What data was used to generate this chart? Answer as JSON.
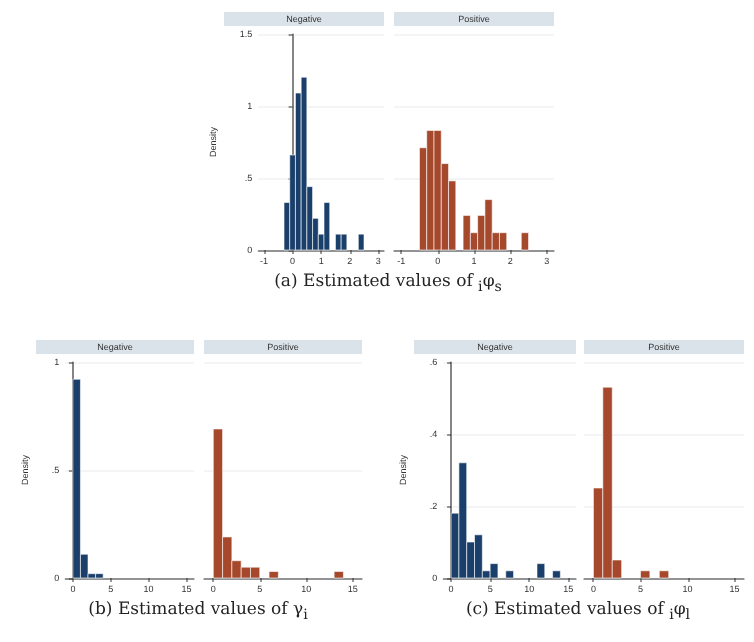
{
  "chart_data": [
    {
      "type": "histogram",
      "title": "Negative",
      "ylabel": "Density",
      "bins": [
        -0.3,
        -0.1,
        0.1,
        0.3,
        0.5,
        0.7,
        0.9,
        1.1,
        1.3,
        1.5,
        1.7,
        1.9,
        2.1,
        2.3,
        2.5
      ],
      "values": [
        0.33,
        0.66,
        1.09,
        1.2,
        0.44,
        0.22,
        0.11,
        0.33,
        0,
        0.11,
        0.11,
        0,
        0,
        0.11
      ],
      "color": "#1b3f6b",
      "xlim": [
        -1.2,
        3.2
      ],
      "xticks": [
        -1,
        0,
        1,
        2,
        3
      ],
      "ylim": [
        0,
        1.5
      ],
      "yticks": [
        0,
        {
          "value": 0.5,
          "label": ".5"
        },
        1,
        1.5
      ],
      "grid": "y",
      "annotations": [
        "(a) Estimated values of $_{i}$φ$_{s}$"
      ]
    },
    {
      "type": "histogram",
      "title": "Positive",
      "bins": [
        -0.5,
        -0.3,
        -0.1,
        0.1,
        0.3,
        0.5,
        0.7,
        0.9,
        1.1,
        1.3,
        1.5,
        1.7,
        1.9,
        2.1,
        2.3,
        2.5
      ],
      "values": [
        0.71,
        0.83,
        0.83,
        0.6,
        0.48,
        0,
        0.24,
        0.12,
        0.24,
        0.35,
        0.12,
        0.12,
        0,
        0,
        0.12
      ],
      "color": "#a5482b",
      "xlim": [
        -1.2,
        3.2
      ],
      "xticks": [
        -1,
        0,
        1,
        2,
        3
      ],
      "ylim": [
        0,
        1.5
      ],
      "yticks": [
        0,
        0.5,
        1,
        1.5
      ],
      "grid": "y",
      "tick_labels": "x"
    },
    {
      "type": "histogram",
      "title": "Negative",
      "ylabel": "Density",
      "bins": [
        0,
        1,
        2,
        3,
        4
      ],
      "values": [
        0.92,
        0.11,
        0.02,
        0.02
      ],
      "color": "#1b3f6b",
      "xlim": [
        -1,
        16
      ],
      "xticks": [
        0,
        5,
        10,
        15
      ],
      "ylim": [
        0,
        1
      ],
      "yticks": [
        0,
        {
          "value": 0.5,
          "label": ".5"
        },
        1
      ],
      "grid": "y",
      "annotations": [
        "(b) Estimated values of γ$_{i}$"
      ]
    },
    {
      "type": "histogram",
      "title": "Positive",
      "bins": [
        0,
        1,
        2,
        3,
        4,
        5,
        6,
        7,
        8,
        9,
        10,
        11,
        12,
        13,
        14
      ],
      "values": [
        0.69,
        0.19,
        0.08,
        0.05,
        0.05,
        0,
        0.03,
        0,
        0,
        0,
        0,
        0,
        0,
        0.03
      ],
      "color": "#a5482b",
      "xlim": [
        -1,
        16
      ],
      "xticks": [
        0,
        5,
        10,
        15
      ],
      "ylim": [
        0,
        1
      ],
      "yticks": [
        0,
        0.5,
        1
      ],
      "grid": "y",
      "tick_labels": "x"
    },
    {
      "type": "histogram",
      "title": "Negative",
      "ylabel": "Density",
      "bins": [
        0,
        1,
        2,
        3,
        4,
        5,
        6,
        7,
        8,
        9,
        10,
        11,
        12,
        13,
        14
      ],
      "values": [
        0.18,
        0.32,
        0.1,
        0.12,
        0.02,
        0.04,
        0,
        0.02,
        0,
        0,
        0,
        0.04,
        0,
        0.02
      ],
      "color": "#1b3f6b",
      "xlim": [
        -1,
        16
      ],
      "xticks": [
        0,
        5,
        10,
        15
      ],
      "ylim": [
        0,
        0.6
      ],
      "yticks": [
        0,
        {
          "value": 0.2,
          "label": ".2"
        },
        {
          "value": 0.4,
          "label": ".4"
        },
        {
          "value": 0.6,
          "label": ".6"
        }
      ],
      "grid": "y",
      "annotations": [
        "(c) Estimated values of $_{i}$φ$_{l}$"
      ]
    },
    {
      "type": "histogram",
      "title": "Positive",
      "bins": [
        0,
        1,
        2,
        3,
        4,
        5,
        6,
        7,
        8
      ],
      "values": [
        0.25,
        0.53,
        0.05,
        0,
        0,
        0.02,
        0,
        0.02
      ],
      "color": "#a5482b",
      "xlim": [
        -1,
        16
      ],
      "xticks": [
        0,
        5,
        10,
        15
      ],
      "ylim": [
        0,
        0.6
      ],
      "yticks": [
        0,
        0.2,
        0.4,
        0.6
      ],
      "grid": "y",
      "tick_labels": "x"
    }
  ]
}
